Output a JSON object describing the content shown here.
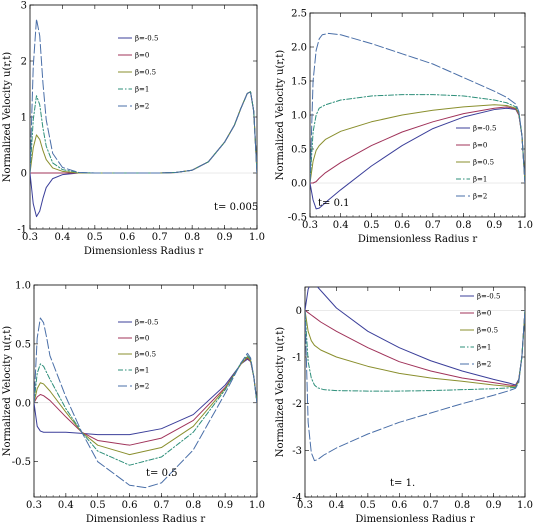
{
  "chart_data": [
    {
      "type": "line",
      "t_label": "t=  0.005",
      "xlabel": "Dimensionless Radius r",
      "ylabel": "Normalized  Velocity  u(r,t)",
      "xlim": [
        0.3,
        1.0
      ],
      "ylim": [
        -1,
        3
      ],
      "xticks": [
        "0.3",
        "0.4",
        "0.5",
        "0.6",
        "0.7",
        "0.8",
        "0.9",
        "1.0"
      ],
      "yticks": [
        "-1",
        "0",
        "1",
        "2",
        "3"
      ],
      "legend_position": "top-center",
      "series": [
        {
          "name": "β=-0.5",
          "color": "#3b3f9a",
          "dash": "solid",
          "x": [
            0.3,
            0.31,
            0.32,
            0.33,
            0.34,
            0.35,
            0.37,
            0.4,
            0.45,
            0.5,
            0.6,
            0.7,
            0.75,
            0.8,
            0.85,
            0.9,
            0.93,
            0.95,
            0.97,
            0.98,
            0.99,
            1.0
          ],
          "y": [
            0,
            -0.55,
            -0.78,
            -0.68,
            -0.45,
            -0.26,
            -0.1,
            -0.03,
            0,
            0,
            0,
            0,
            0.01,
            0.05,
            0.2,
            0.55,
            0.85,
            1.15,
            1.42,
            1.45,
            1.1,
            0
          ]
        },
        {
          "name": "β=0",
          "color": "#a0335a",
          "dash": "solid",
          "x": [
            0.3,
            0.4,
            0.5,
            0.6,
            0.7,
            0.75,
            0.8,
            0.85,
            0.9,
            0.93,
            0.95,
            0.97,
            0.98,
            0.99,
            1.0
          ],
          "y": [
            0,
            0,
            0,
            0,
            0,
            0.01,
            0.05,
            0.2,
            0.55,
            0.85,
            1.15,
            1.42,
            1.45,
            1.1,
            0
          ]
        },
        {
          "name": "β=0.5",
          "color": "#8a8f2e",
          "dash": "solid",
          "x": [
            0.3,
            0.31,
            0.32,
            0.33,
            0.34,
            0.35,
            0.37,
            0.4,
            0.45,
            0.5,
            0.6,
            0.7,
            0.75,
            0.8,
            0.85,
            0.9,
            0.93,
            0.95,
            0.97,
            0.98,
            0.99,
            1.0
          ],
          "y": [
            0,
            0.45,
            0.68,
            0.6,
            0.4,
            0.24,
            0.09,
            0.03,
            0,
            0,
            0,
            0,
            0.01,
            0.05,
            0.2,
            0.55,
            0.85,
            1.15,
            1.42,
            1.45,
            1.1,
            0
          ]
        },
        {
          "name": "β=1",
          "color": "#2e8f7a",
          "dash": "dashdot",
          "x": [
            0.3,
            0.31,
            0.32,
            0.33,
            0.34,
            0.35,
            0.37,
            0.4,
            0.45,
            0.5,
            0.6,
            0.7,
            0.75,
            0.8,
            0.85,
            0.9,
            0.93,
            0.95,
            0.97,
            0.98,
            0.99,
            1.0
          ],
          "y": [
            0,
            0.95,
            1.38,
            1.22,
            0.8,
            0.48,
            0.18,
            0.06,
            0.01,
            0,
            0,
            0,
            0.01,
            0.05,
            0.2,
            0.55,
            0.85,
            1.15,
            1.42,
            1.45,
            1.1,
            0
          ]
        },
        {
          "name": "β=2",
          "color": "#4a6fa8",
          "dash": "longdash",
          "x": [
            0.3,
            0.31,
            0.32,
            0.33,
            0.34,
            0.35,
            0.37,
            0.4,
            0.45,
            0.5,
            0.6,
            0.7,
            0.75,
            0.8,
            0.85,
            0.9,
            0.93,
            0.95,
            0.97,
            0.98,
            0.99,
            1.0
          ],
          "y": [
            0,
            1.9,
            2.75,
            2.45,
            1.6,
            0.95,
            0.35,
            0.1,
            0.01,
            0,
            0,
            0,
            0.01,
            0.05,
            0.2,
            0.55,
            0.85,
            1.15,
            1.42,
            1.45,
            1.1,
            0
          ]
        }
      ]
    },
    {
      "type": "line",
      "t_label": "t= 0.1",
      "xlabel": "Dimensionless Radius r",
      "ylabel": "Normalized  Velocity  u(r,t)",
      "xlim": [
        0.3,
        1.0
      ],
      "ylim": [
        -0.5,
        2.5
      ],
      "xticks": [
        "0.3",
        "0.4",
        "0.5",
        "0.6",
        "0.7",
        "0.8",
        "0.9",
        "1.0"
      ],
      "yticks": [
        "-0.5",
        "0.0",
        "0.5",
        "1.0",
        "1.5",
        "2.0",
        "2.5"
      ],
      "legend_position": "right",
      "series": [
        {
          "name": "β=-0.5",
          "color": "#3b3f9a",
          "dash": "solid",
          "x": [
            0.3,
            0.31,
            0.32,
            0.33,
            0.34,
            0.36,
            0.4,
            0.5,
            0.6,
            0.7,
            0.8,
            0.9,
            0.94,
            0.97,
            0.98,
            0.99,
            1.0
          ],
          "y": [
            0,
            -0.25,
            -0.38,
            -0.37,
            -0.33,
            -0.25,
            -0.1,
            0.25,
            0.55,
            0.8,
            0.97,
            1.08,
            1.1,
            1.08,
            1.0,
            0.7,
            0
          ]
        },
        {
          "name": "β=0",
          "color": "#a0335a",
          "dash": "solid",
          "x": [
            0.3,
            0.31,
            0.32,
            0.33,
            0.35,
            0.4,
            0.5,
            0.6,
            0.7,
            0.8,
            0.9,
            0.94,
            0.97,
            0.98,
            0.99,
            1.0
          ],
          "y": [
            0,
            0,
            0.02,
            0.07,
            0.15,
            0.3,
            0.55,
            0.75,
            0.9,
            1.02,
            1.1,
            1.12,
            1.09,
            1.0,
            0.7,
            0
          ]
        },
        {
          "name": "β=0.5",
          "color": "#8a8f2e",
          "dash": "solid",
          "x": [
            0.3,
            0.31,
            0.32,
            0.33,
            0.35,
            0.4,
            0.5,
            0.6,
            0.7,
            0.8,
            0.9,
            0.94,
            0.97,
            0.98,
            0.99,
            1.0
          ],
          "y": [
            0,
            0.32,
            0.48,
            0.55,
            0.64,
            0.76,
            0.9,
            1.0,
            1.07,
            1.12,
            1.15,
            1.14,
            1.1,
            1.02,
            0.7,
            0
          ]
        },
        {
          "name": "β=1",
          "color": "#2e8f7a",
          "dash": "dashdot",
          "x": [
            0.3,
            0.31,
            0.32,
            0.33,
            0.35,
            0.4,
            0.5,
            0.6,
            0.7,
            0.8,
            0.9,
            0.94,
            0.97,
            0.98,
            0.99,
            1.0
          ],
          "y": [
            0,
            0.75,
            1.0,
            1.1,
            1.15,
            1.22,
            1.28,
            1.3,
            1.3,
            1.28,
            1.22,
            1.18,
            1.12,
            1.04,
            0.7,
            0
          ]
        },
        {
          "name": "β=2",
          "color": "#4a6fa8",
          "dash": "longdash",
          "x": [
            0.3,
            0.31,
            0.32,
            0.33,
            0.34,
            0.36,
            0.4,
            0.5,
            0.6,
            0.7,
            0.8,
            0.9,
            0.94,
            0.97,
            0.98,
            0.99,
            1.0
          ],
          "y": [
            0,
            1.5,
            1.95,
            2.12,
            2.18,
            2.2,
            2.18,
            2.05,
            1.9,
            1.75,
            1.55,
            1.35,
            1.26,
            1.16,
            1.05,
            0.7,
            0
          ]
        }
      ]
    },
    {
      "type": "line",
      "t_label": "t= 0.5",
      "xlabel": "Dimensionless Radius r",
      "ylabel": "Normalized  Velocity  u(r,t)",
      "xlim": [
        0.3,
        1.0
      ],
      "ylim": [
        -0.8,
        1.0
      ],
      "xticks": [
        "0.3",
        "0.4",
        "0.5",
        "0.6",
        "0.7",
        "0.8",
        "0.9",
        "1.0"
      ],
      "yticks": [
        "-0.5",
        "0.0",
        "0.5",
        "1.0"
      ],
      "legend_position": "top-center",
      "series": [
        {
          "name": "β=-0.5",
          "color": "#3b3f9a",
          "dash": "solid",
          "x": [
            0.3,
            0.31,
            0.32,
            0.33,
            0.35,
            0.4,
            0.45,
            0.5,
            0.6,
            0.7,
            0.8,
            0.9,
            0.95,
            0.97,
            0.98,
            0.99,
            1.0
          ],
          "y": [
            0,
            -0.2,
            -0.24,
            -0.25,
            -0.25,
            -0.25,
            -0.26,
            -0.27,
            -0.27,
            -0.22,
            -0.1,
            0.15,
            0.33,
            0.37,
            0.35,
            0.22,
            0
          ]
        },
        {
          "name": "β=0",
          "color": "#a0335a",
          "dash": "solid",
          "x": [
            0.3,
            0.31,
            0.32,
            0.33,
            0.35,
            0.4,
            0.45,
            0.5,
            0.6,
            0.7,
            0.8,
            0.9,
            0.95,
            0.97,
            0.98,
            0.99,
            1.0
          ],
          "y": [
            0,
            0.05,
            0.07,
            0.06,
            0.02,
            -0.12,
            -0.25,
            -0.32,
            -0.36,
            -0.3,
            -0.15,
            0.13,
            0.33,
            0.38,
            0.35,
            0.22,
            0
          ]
        },
        {
          "name": "β=0.5",
          "color": "#8a8f2e",
          "dash": "solid",
          "x": [
            0.3,
            0.31,
            0.32,
            0.33,
            0.35,
            0.4,
            0.45,
            0.5,
            0.6,
            0.7,
            0.8,
            0.9,
            0.95,
            0.97,
            0.98,
            0.99,
            1.0
          ],
          "y": [
            0,
            0.12,
            0.17,
            0.16,
            0.1,
            -0.08,
            -0.25,
            -0.36,
            -0.44,
            -0.38,
            -0.2,
            0.12,
            0.33,
            0.39,
            0.36,
            0.22,
            0
          ]
        },
        {
          "name": "β=1",
          "color": "#2e8f7a",
          "dash": "dashdot",
          "x": [
            0.3,
            0.31,
            0.32,
            0.33,
            0.35,
            0.4,
            0.45,
            0.5,
            0.6,
            0.7,
            0.8,
            0.9,
            0.95,
            0.97,
            0.98,
            0.99,
            1.0
          ],
          "y": [
            0,
            0.25,
            0.33,
            0.31,
            0.2,
            -0.05,
            -0.25,
            -0.41,
            -0.53,
            -0.46,
            -0.25,
            0.11,
            0.34,
            0.4,
            0.37,
            0.22,
            0
          ]
        },
        {
          "name": "β=2",
          "color": "#4a6fa8",
          "dash": "longdash",
          "x": [
            0.3,
            0.31,
            0.32,
            0.33,
            0.34,
            0.35,
            0.4,
            0.45,
            0.5,
            0.6,
            0.65,
            0.7,
            0.8,
            0.9,
            0.95,
            0.97,
            0.98,
            0.99,
            1.0
          ],
          "y": [
            0,
            0.55,
            0.72,
            0.68,
            0.55,
            0.4,
            0.05,
            -0.25,
            -0.5,
            -0.7,
            -0.72,
            -0.68,
            -0.4,
            0.08,
            0.34,
            0.42,
            0.38,
            0.22,
            0
          ]
        }
      ]
    },
    {
      "type": "line",
      "t_label": "t=  1.",
      "xlabel": "Dimensionless Radius r",
      "ylabel": "Normalized  Velocity  u(r,t)",
      "xlim": [
        0.3,
        1.0
      ],
      "ylim": [
        -4,
        0.5
      ],
      "xticks": [
        "0.3",
        "0.4",
        "0.5",
        "0.6",
        "0.7",
        "0.8",
        "0.9",
        "1.0"
      ],
      "yticks": [
        "-4",
        "-3",
        "-2",
        "-1",
        "0"
      ],
      "legend_position": "top-right",
      "series": [
        {
          "name": "β=-0.5",
          "color": "#3b3f9a",
          "dash": "solid",
          "x": [
            0.3,
            0.31,
            0.32,
            0.33,
            0.34,
            0.36,
            0.4,
            0.5,
            0.6,
            0.7,
            0.8,
            0.9,
            0.95,
            0.97,
            0.98,
            0.99,
            1.0
          ],
          "y": [
            0,
            0.45,
            0.6,
            0.58,
            0.5,
            0.35,
            0.05,
            -0.45,
            -0.8,
            -1.08,
            -1.3,
            -1.48,
            -1.56,
            -1.6,
            -1.48,
            -1.0,
            0
          ]
        },
        {
          "name": "β=0",
          "color": "#a0335a",
          "dash": "solid",
          "x": [
            0.3,
            0.31,
            0.32,
            0.33,
            0.35,
            0.4,
            0.5,
            0.6,
            0.7,
            0.8,
            0.9,
            0.95,
            0.97,
            0.98,
            0.99,
            1.0
          ],
          "y": [
            0,
            -0.05,
            -0.1,
            -0.15,
            -0.25,
            -0.45,
            -0.8,
            -1.1,
            -1.3,
            -1.45,
            -1.55,
            -1.6,
            -1.62,
            -1.5,
            -1.0,
            0
          ]
        },
        {
          "name": "β=0.5",
          "color": "#8a8f2e",
          "dash": "solid",
          "x": [
            0.3,
            0.31,
            0.32,
            0.33,
            0.35,
            0.4,
            0.5,
            0.6,
            0.7,
            0.8,
            0.9,
            0.95,
            0.97,
            0.98,
            0.99,
            1.0
          ],
          "y": [
            0,
            -0.45,
            -0.65,
            -0.75,
            -0.85,
            -1.0,
            -1.2,
            -1.35,
            -1.45,
            -1.52,
            -1.6,
            -1.63,
            -1.64,
            -1.52,
            -1.0,
            0
          ]
        },
        {
          "name": "β=1",
          "color": "#2e8f7a",
          "dash": "dashdot",
          "x": [
            0.3,
            0.31,
            0.32,
            0.33,
            0.34,
            0.36,
            0.4,
            0.5,
            0.6,
            0.7,
            0.8,
            0.9,
            0.95,
            0.97,
            0.98,
            0.99,
            1.0
          ],
          "y": [
            0,
            -1.1,
            -1.45,
            -1.6,
            -1.66,
            -1.7,
            -1.72,
            -1.73,
            -1.73,
            -1.72,
            -1.7,
            -1.68,
            -1.66,
            -1.65,
            -1.52,
            -1.0,
            0
          ]
        },
        {
          "name": "β=2",
          "color": "#4a6fa8",
          "dash": "longdash",
          "x": [
            0.3,
            0.31,
            0.32,
            0.33,
            0.34,
            0.36,
            0.4,
            0.5,
            0.6,
            0.7,
            0.8,
            0.9,
            0.95,
            0.97,
            0.98,
            0.99,
            1.0
          ],
          "y": [
            0,
            -2.4,
            -3.05,
            -3.22,
            -3.2,
            -3.1,
            -2.95,
            -2.65,
            -2.4,
            -2.2,
            -2.0,
            -1.82,
            -1.72,
            -1.67,
            -1.55,
            -1.0,
            0
          ]
        }
      ]
    }
  ]
}
